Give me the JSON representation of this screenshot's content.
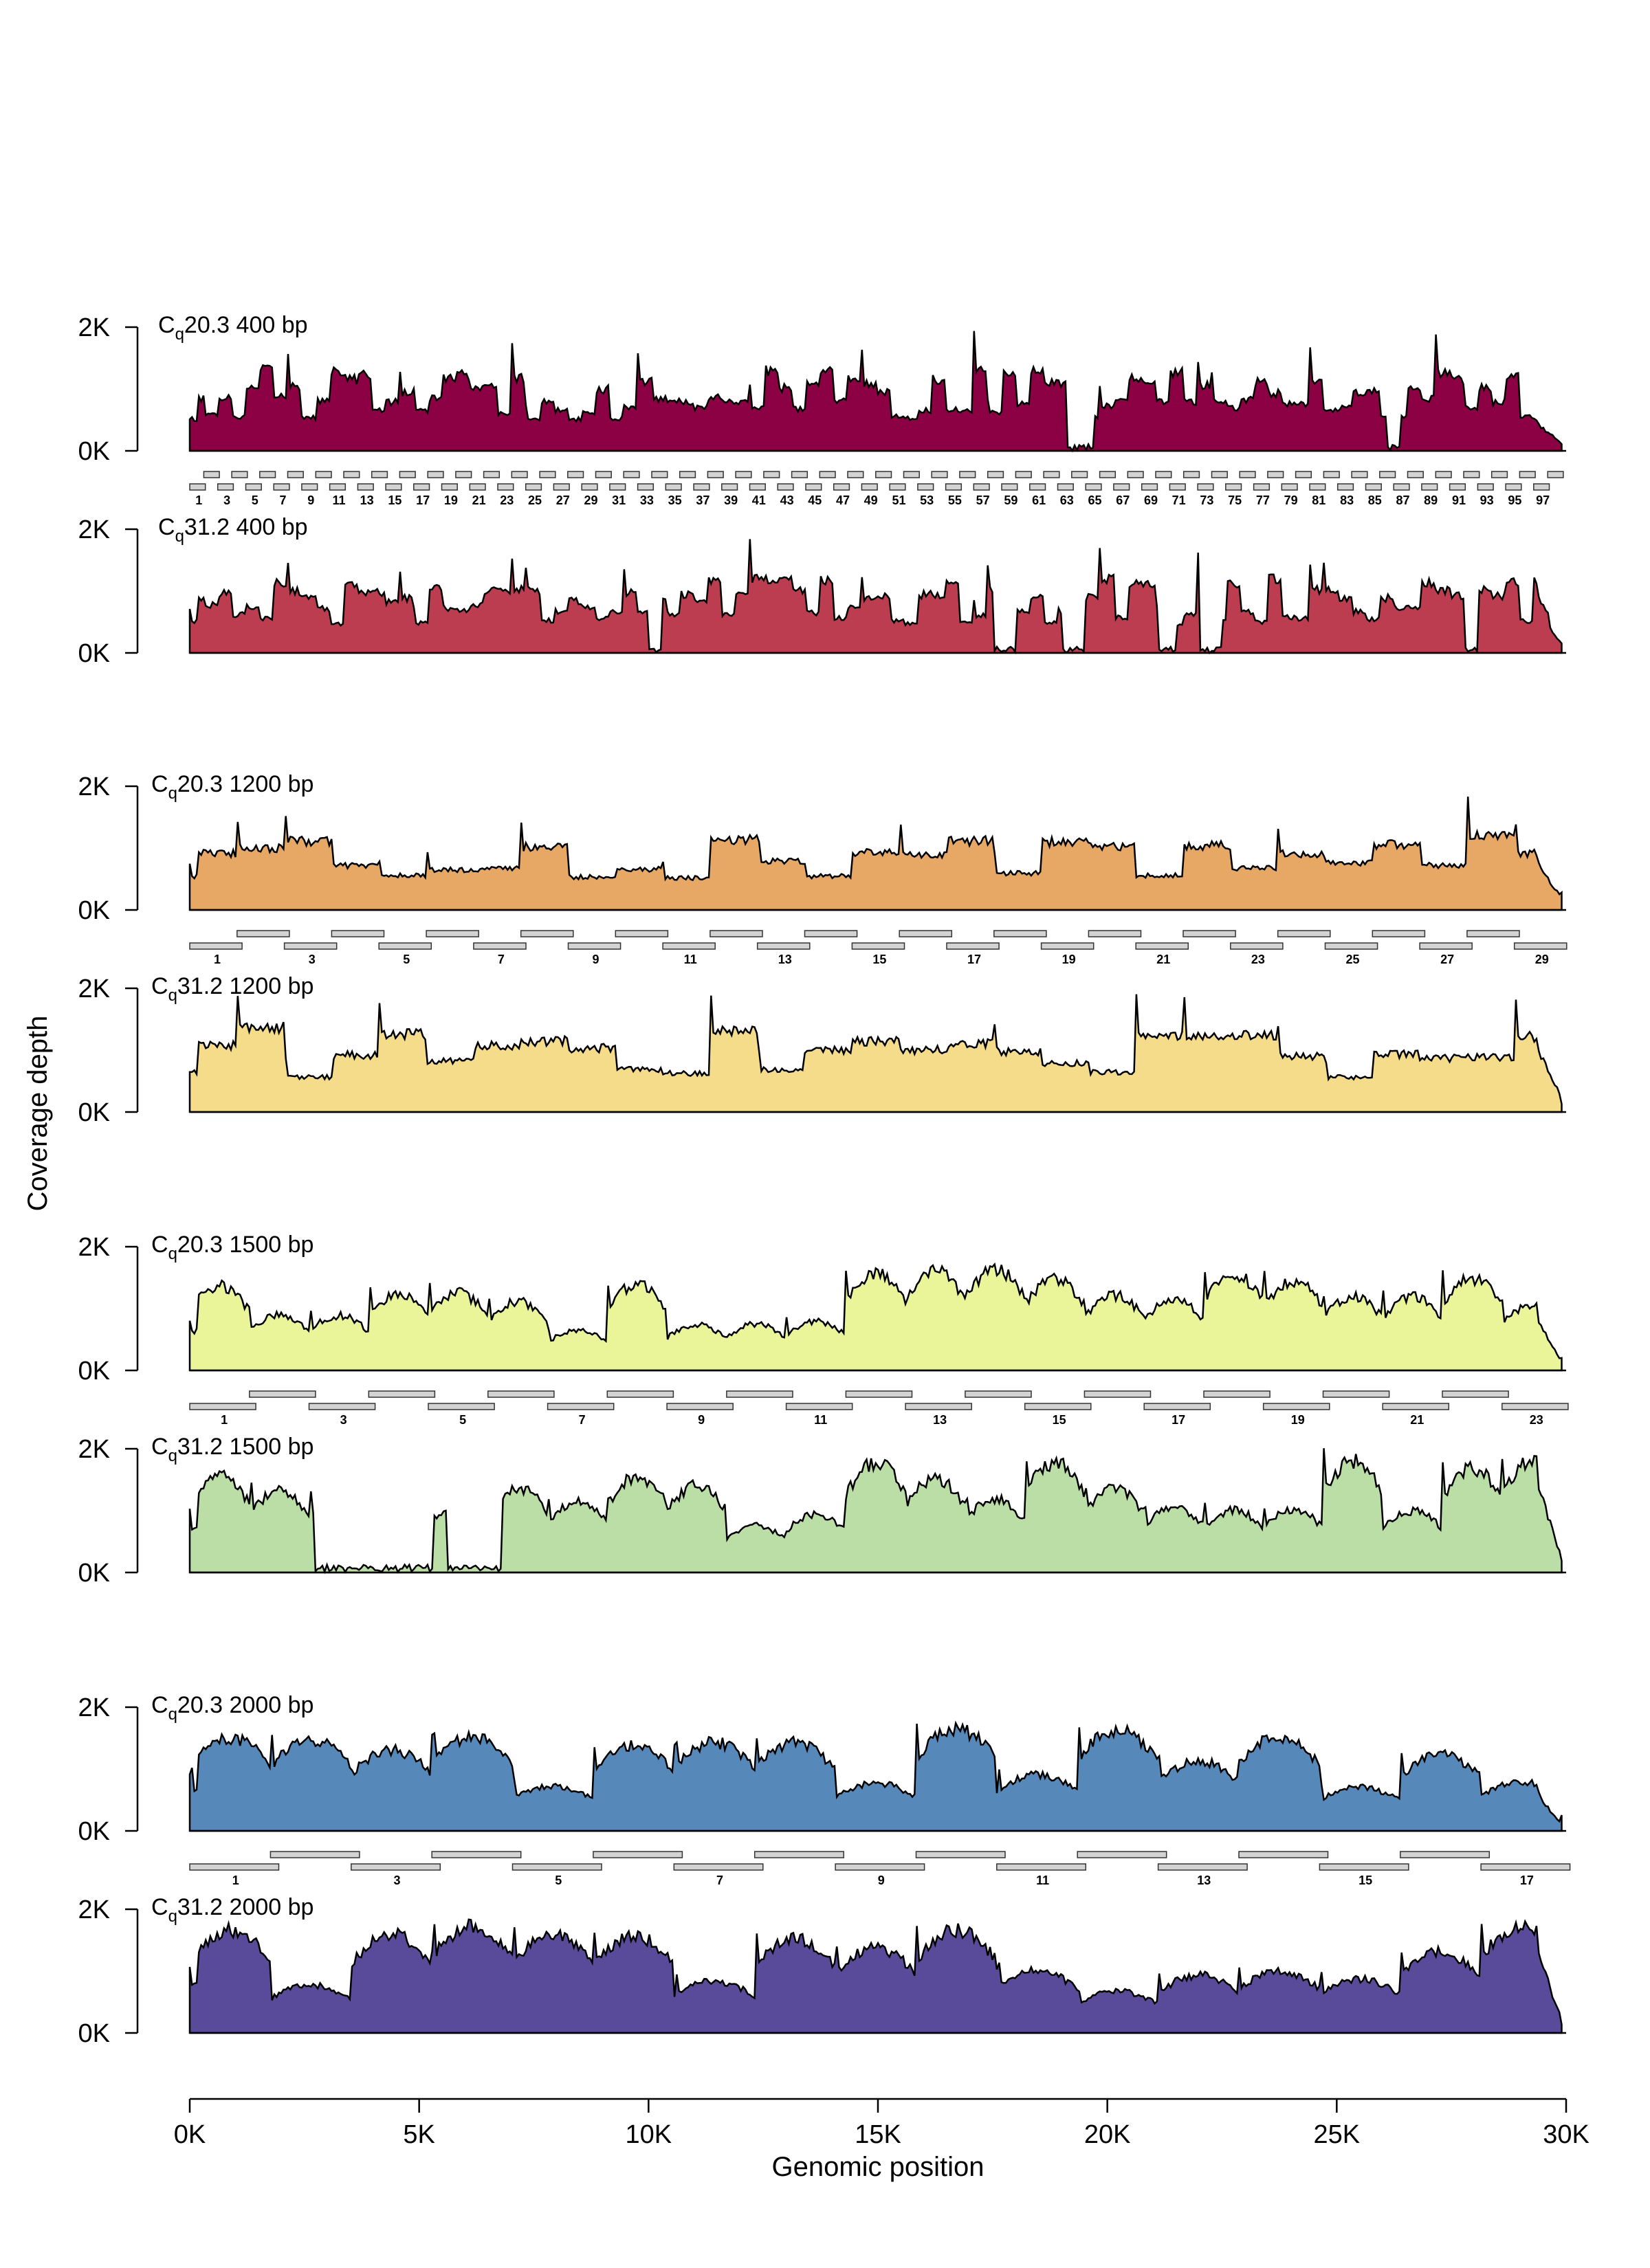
{
  "chart_data": {
    "type": "area",
    "xlabel": "Genomic position",
    "ylabel": "Coverage depth",
    "xlim": [
      0,
      30000
    ],
    "ylim": [
      0,
      2000
    ],
    "x_ticks": [
      0,
      5000,
      10000,
      15000,
      20000,
      25000,
      30000
    ],
    "x_tick_labels": [
      "0K",
      "5K",
      "10K",
      "15K",
      "20K",
      "25K",
      "30K"
    ],
    "y_ticks": [
      0,
      2000
    ],
    "y_tick_labels": [
      "0K",
      "2K"
    ],
    "genome_length": 29903,
    "panels": [
      {
        "cq": "20.3",
        "size": "400 bp",
        "color": "#8C0044",
        "base": 900,
        "amplicon_length": 400,
        "amplicon_count": 98,
        "dropouts": [
          [
            19100,
            19700
          ],
          [
            26100,
            26400
          ]
        ]
      },
      {
        "cq": "31.2",
        "size": "400 bp",
        "color": "#BD3D50",
        "base": 850,
        "amplicon_length": 400,
        "amplicon_count": 98,
        "dropouts": [
          [
            10000,
            10300
          ],
          [
            17500,
            18000
          ],
          [
            19000,
            19500
          ],
          [
            21100,
            21500
          ],
          [
            22000,
            22500
          ],
          [
            27800,
            28100
          ]
        ]
      },
      {
        "cq": "20.3",
        "size": "1200 bp",
        "color": "#E8A865",
        "base": 850,
        "amplicon_length": 1200,
        "amplicon_count": 29,
        "dropouts": []
      },
      {
        "cq": "31.2",
        "size": "1200 bp",
        "color": "#F5DC8A",
        "base": 950,
        "amplicon_length": 1200,
        "amplicon_count": 29,
        "dropouts": []
      },
      {
        "cq": "20.3",
        "size": "1500 bp",
        "color": "#EAF59A",
        "base": 950,
        "amplicon_length": 1500,
        "amplicon_count": 23,
        "dropouts": []
      },
      {
        "cq": "31.2",
        "size": "1500 bp",
        "color": "#BADEA5",
        "base": 1050,
        "amplicon_length": 1500,
        "amplicon_count": 23,
        "dropouts": [
          [
            2700,
            5300
          ],
          [
            5600,
            6800
          ]
        ]
      },
      {
        "cq": "20.3",
        "size": "2000 bp",
        "color": "#5788BA",
        "base": 950,
        "amplicon_length": 2000,
        "amplicon_count": 17,
        "dropouts": []
      },
      {
        "cq": "31.2",
        "size": "2000 bp",
        "color": "#5A4B9A",
        "base": 1000,
        "amplicon_length": 2000,
        "amplicon_count": 17,
        "dropouts": []
      }
    ],
    "amplicon_tracks": [
      {
        "between_panels": [
          0,
          1
        ],
        "count": 98,
        "label_every": 2,
        "first_label": 1
      },
      {
        "between_panels": [
          2,
          3
        ],
        "count": 29,
        "label_every": 2,
        "first_label": 1
      },
      {
        "between_panels": [
          4,
          5
        ],
        "count": 23,
        "label_every": 2,
        "first_label": 1
      },
      {
        "between_panels": [
          6,
          7
        ],
        "count": 17,
        "label_every": 2,
        "first_label": 1
      }
    ]
  }
}
